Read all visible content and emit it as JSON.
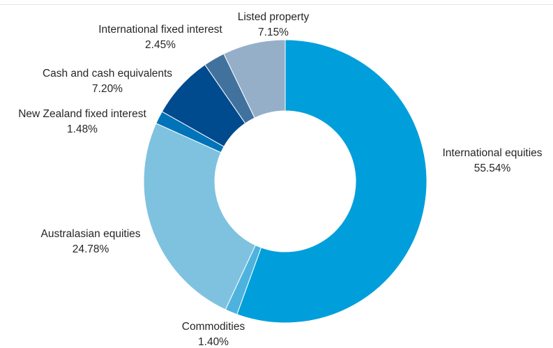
{
  "chart_data": {
    "type": "pie",
    "title": "",
    "donut": true,
    "start": "12 o'clock",
    "direction": "clockwise",
    "legend": "none",
    "slices": [
      {
        "label": "International equities",
        "value": 55.54,
        "value_text": "55.54%",
        "color": "#009FDB"
      },
      {
        "label": "Commodities",
        "value": 1.4,
        "value_text": "1.40%",
        "color": "#4DB3DE"
      },
      {
        "label": "Australasian equities",
        "value": 24.78,
        "value_text": "24.78%",
        "color": "#7FC2E0"
      },
      {
        "label": "New Zealand fixed interest",
        "value": 1.48,
        "value_text": "1.48%",
        "color": "#0073B9"
      },
      {
        "label": "Cash and cash equivalents",
        "value": 7.2,
        "value_text": "7.20%",
        "color": "#004B8D"
      },
      {
        "label": "International fixed interest",
        "value": 2.45,
        "value_text": "2.45%",
        "color": "#41729E"
      },
      {
        "label": "Listed property",
        "value": 7.15,
        "value_text": "7.15%",
        "color": "#95AFC9"
      }
    ]
  }
}
